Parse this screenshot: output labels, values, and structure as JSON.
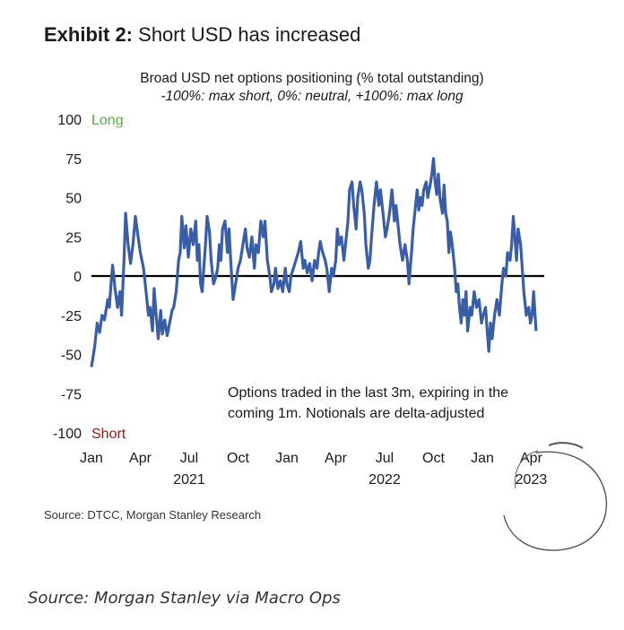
{
  "header": {
    "exhibit_number": "Exhibit 2:",
    "exhibit_title": "Short USD has increased"
  },
  "colors": {
    "line": "#3a5da8",
    "zero_line": "#000000",
    "long_label": "#5aa84a",
    "short_label": "#8b1a1a"
  },
  "footer": {
    "source": "Source: DTCC, Morgan Stanley Research",
    "caption": "Source: Morgan Stanley via Macro Ops"
  },
  "chart_data": {
    "type": "line",
    "title": "Broad USD net options positioning (% total outstanding)",
    "subtitle": "-100%: max short, 0%: neutral, +100%: max long",
    "ylim": [
      -100,
      100
    ],
    "yticks": [
      100,
      75,
      50,
      25,
      0,
      -25,
      -50,
      -75,
      -100
    ],
    "ytick_labels": [
      "100",
      "75",
      "50",
      "25",
      "0",
      "-25",
      "-50",
      "-75",
      "-100"
    ],
    "xlim": [
      0,
      27.8
    ],
    "xticks": [
      {
        "month": 0,
        "label": "Jan"
      },
      {
        "month": 3,
        "label": "Apr"
      },
      {
        "month": 6,
        "label": "Jul"
      },
      {
        "month": 9,
        "label": "Oct"
      },
      {
        "month": 12,
        "label": "Jan"
      },
      {
        "month": 15,
        "label": "Apr"
      },
      {
        "month": 18,
        "label": "Jul"
      },
      {
        "month": 21,
        "label": "Oct"
      },
      {
        "month": 24,
        "label": "Jan"
      },
      {
        "month": 27,
        "label": "Apr"
      }
    ],
    "year_labels": [
      {
        "month": 6,
        "label": "2021"
      },
      {
        "month": 18,
        "label": "2022"
      },
      {
        "month": 27,
        "label": "2023"
      }
    ],
    "region_labels": {
      "long": "Long",
      "short": "Short"
    },
    "annotation": [
      "Options traded in the last 3m, expiring in the",
      "coming 1m. Notionals are delta-adjusted"
    ],
    "grid": false,
    "series": [
      {
        "values": [
          [
            0.0,
            -58
          ],
          [
            0.2,
            -45
          ],
          [
            0.35,
            -30
          ],
          [
            0.5,
            -36
          ],
          [
            0.65,
            -25
          ],
          [
            0.8,
            -28
          ],
          [
            1.0,
            -15
          ],
          [
            1.1,
            -20
          ],
          [
            1.2,
            -5
          ],
          [
            1.3,
            7
          ],
          [
            1.45,
            -8
          ],
          [
            1.6,
            -20
          ],
          [
            1.75,
            -10
          ],
          [
            1.85,
            -25
          ],
          [
            2.0,
            10
          ],
          [
            2.1,
            40
          ],
          [
            2.25,
            20
          ],
          [
            2.4,
            8
          ],
          [
            2.55,
            20
          ],
          [
            2.7,
            38
          ],
          [
            2.85,
            26
          ],
          [
            3.0,
            15
          ],
          [
            3.1,
            10
          ],
          [
            3.2,
            5
          ],
          [
            3.35,
            -10
          ],
          [
            3.5,
            -25
          ],
          [
            3.6,
            -20
          ],
          [
            3.75,
            -35
          ],
          [
            3.85,
            -8
          ],
          [
            3.95,
            -22
          ],
          [
            4.1,
            -40
          ],
          [
            4.25,
            -22
          ],
          [
            4.35,
            -37
          ],
          [
            4.5,
            -28
          ],
          [
            4.65,
            -38
          ],
          [
            4.8,
            -30
          ],
          [
            4.95,
            -22
          ],
          [
            5.05,
            -20
          ],
          [
            5.2,
            -10
          ],
          [
            5.35,
            10
          ],
          [
            5.45,
            15
          ],
          [
            5.55,
            38
          ],
          [
            5.7,
            18
          ],
          [
            5.8,
            32
          ],
          [
            5.95,
            12
          ],
          [
            6.1,
            30
          ],
          [
            6.25,
            20
          ],
          [
            6.4,
            35
          ],
          [
            6.5,
            10
          ],
          [
            6.6,
            20
          ],
          [
            6.7,
            -5
          ],
          [
            6.8,
            -10
          ],
          [
            6.9,
            5
          ],
          [
            7.0,
            20
          ],
          [
            7.1,
            38
          ],
          [
            7.25,
            28
          ],
          [
            7.35,
            10
          ],
          [
            7.5,
            -5
          ],
          [
            7.65,
            0
          ],
          [
            7.75,
            5
          ],
          [
            7.85,
            20
          ],
          [
            7.95,
            10
          ],
          [
            8.05,
            30
          ],
          [
            8.2,
            35
          ],
          [
            8.35,
            15
          ],
          [
            8.45,
            30
          ],
          [
            8.55,
            10
          ],
          [
            8.7,
            -15
          ],
          [
            8.85,
            -5
          ],
          [
            9.0,
            5
          ],
          [
            9.15,
            10
          ],
          [
            9.3,
            20
          ],
          [
            9.45,
            30
          ],
          [
            9.55,
            18
          ],
          [
            9.7,
            12
          ],
          [
            9.85,
            25
          ],
          [
            10.0,
            5
          ],
          [
            10.1,
            20
          ],
          [
            10.25,
            15
          ],
          [
            10.4,
            35
          ],
          [
            10.55,
            25
          ],
          [
            10.65,
            35
          ],
          [
            10.8,
            10
          ],
          [
            10.95,
            0
          ],
          [
            11.05,
            -10
          ],
          [
            11.2,
            -5
          ],
          [
            11.3,
            5
          ],
          [
            11.45,
            -8
          ],
          [
            11.6,
            -3
          ],
          [
            11.75,
            -10
          ],
          [
            11.9,
            5
          ],
          [
            12.0,
            -5
          ],
          [
            12.15,
            -10
          ],
          [
            12.25,
            0
          ],
          [
            12.4,
            5
          ],
          [
            12.55,
            10
          ],
          [
            12.7,
            15
          ],
          [
            12.85,
            22
          ],
          [
            13.0,
            5
          ],
          [
            13.1,
            10
          ],
          [
            13.25,
            2
          ],
          [
            13.4,
            8
          ],
          [
            13.55,
            -3
          ],
          [
            13.7,
            10
          ],
          [
            13.85,
            5
          ],
          [
            13.95,
            15
          ],
          [
            14.05,
            22
          ],
          [
            14.2,
            15
          ],
          [
            14.35,
            10
          ],
          [
            14.45,
            5
          ],
          [
            14.6,
            -10
          ],
          [
            14.75,
            5
          ],
          [
            14.85,
            0
          ],
          [
            15.0,
            10
          ],
          [
            15.1,
            30
          ],
          [
            15.2,
            20
          ],
          [
            15.35,
            25
          ],
          [
            15.5,
            10
          ],
          [
            15.6,
            20
          ],
          [
            15.75,
            35
          ],
          [
            15.85,
            55
          ],
          [
            16.0,
            60
          ],
          [
            16.1,
            45
          ],
          [
            16.25,
            30
          ],
          [
            16.35,
            50
          ],
          [
            16.5,
            60
          ],
          [
            16.6,
            55
          ],
          [
            16.75,
            40
          ],
          [
            16.85,
            20
          ],
          [
            17.0,
            5
          ],
          [
            17.1,
            10
          ],
          [
            17.2,
            25
          ],
          [
            17.35,
            45
          ],
          [
            17.5,
            60
          ],
          [
            17.65,
            45
          ],
          [
            17.75,
            55
          ],
          [
            17.9,
            40
          ],
          [
            18.05,
            25
          ],
          [
            18.15,
            30
          ],
          [
            18.3,
            40
          ],
          [
            18.45,
            55
          ],
          [
            18.6,
            35
          ],
          [
            18.7,
            45
          ],
          [
            18.85,
            30
          ],
          [
            18.95,
            20
          ],
          [
            19.1,
            10
          ],
          [
            19.25,
            20
          ],
          [
            19.4,
            10
          ],
          [
            19.5,
            -5
          ],
          [
            19.65,
            15
          ],
          [
            19.75,
            30
          ],
          [
            19.9,
            45
          ],
          [
            20.0,
            55
          ],
          [
            20.1,
            42
          ],
          [
            20.2,
            50
          ],
          [
            20.3,
            45
          ],
          [
            20.4,
            55
          ],
          [
            20.55,
            60
          ],
          [
            20.65,
            50
          ],
          [
            20.8,
            58
          ],
          [
            20.9,
            65
          ],
          [
            21.0,
            75
          ],
          [
            21.1,
            60
          ],
          [
            21.2,
            52
          ],
          [
            21.3,
            65
          ],
          [
            21.4,
            50
          ],
          [
            21.55,
            40
          ],
          [
            21.65,
            58
          ],
          [
            21.75,
            40
          ],
          [
            21.85,
            35
          ],
          [
            21.95,
            15
          ],
          [
            22.05,
            28
          ],
          [
            22.15,
            20
          ],
          [
            22.3,
            5
          ],
          [
            22.4,
            -10
          ],
          [
            22.5,
            -5
          ],
          [
            22.6,
            -20
          ],
          [
            22.7,
            -30
          ],
          [
            22.8,
            -15
          ],
          [
            22.9,
            -25
          ],
          [
            23.0,
            -10
          ],
          [
            23.1,
            -35
          ],
          [
            23.25,
            -20
          ],
          [
            23.35,
            -25
          ],
          [
            23.5,
            -10
          ],
          [
            23.65,
            -20
          ],
          [
            23.8,
            -15
          ],
          [
            23.95,
            -30
          ],
          [
            24.05,
            -25
          ],
          [
            24.2,
            -20
          ],
          [
            24.3,
            -35
          ],
          [
            24.4,
            -48
          ],
          [
            24.5,
            -30
          ],
          [
            24.6,
            -40
          ],
          [
            24.75,
            -25
          ],
          [
            24.9,
            -15
          ],
          [
            25.05,
            -25
          ],
          [
            25.2,
            -5
          ],
          [
            25.3,
            5
          ],
          [
            25.45,
            0
          ],
          [
            25.55,
            15
          ],
          [
            25.7,
            10
          ],
          [
            25.8,
            20
          ],
          [
            25.9,
            38
          ],
          [
            26.0,
            25
          ],
          [
            26.1,
            10
          ],
          [
            26.2,
            30
          ],
          [
            26.35,
            20
          ],
          [
            26.45,
            5
          ],
          [
            26.55,
            -10
          ],
          [
            26.7,
            -25
          ],
          [
            26.85,
            -20
          ],
          [
            26.95,
            -30
          ],
          [
            27.05,
            -25
          ],
          [
            27.15,
            -10
          ],
          [
            27.3,
            -35
          ]
        ]
      }
    ]
  }
}
